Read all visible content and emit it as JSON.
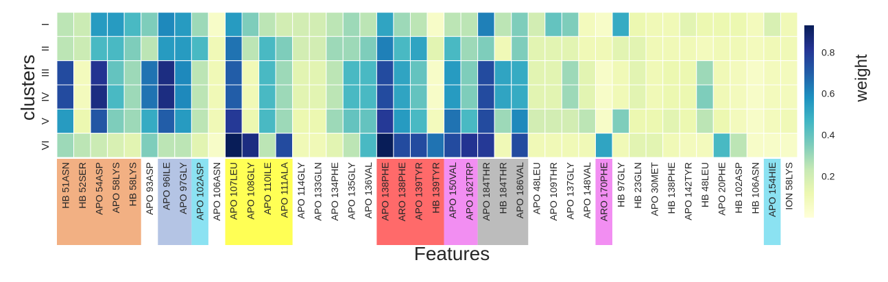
{
  "chart_data": {
    "type": "heatmap",
    "xlabel": "Features",
    "ylabel": "clusters",
    "colorbar_label": "weight",
    "colorbar_ticks": [
      "0.2",
      "0.4",
      "0.6",
      "0.8"
    ],
    "colorbar_tick_values": [
      0.2,
      0.4,
      0.6,
      0.8
    ],
    "value_range": [
      0.0,
      0.93
    ],
    "colormap": "YlGnBu",
    "grid": true,
    "rows": [
      "I",
      "II",
      "III",
      "IV",
      "V",
      "VI"
    ],
    "columns": [
      "HB 51ASN",
      "HB 52SER",
      "APO 54ASP",
      "APO 58LYS",
      "HB 58LYS",
      "APO 93ASP",
      "APO 96ILE",
      "APO 97GLY",
      "APO 102ASP",
      "APO 106ASN",
      "APO 107LEU",
      "APO 108GLY",
      "APO 110ILE",
      "APO 111ALA",
      "APO 114GLY",
      "APO 133GLN",
      "APO 134PHE",
      "APO 135GLY",
      "APO 136VAL",
      "APO 138PHE",
      "ARO 138PHE",
      "APO 139TYR",
      "HB 139TYR",
      "APO 150VAL",
      "APO 162TRP",
      "APO 184THR",
      "HB 184THR",
      "APO 186VAL",
      "APO 48LEU",
      "APO 109THR",
      "APO 137GLY",
      "APO 148VAL",
      "ARO 170PHE",
      "HB 97GLY",
      "HB 23GLN",
      "APO 30MET",
      "HB 138PHE",
      "APO 142TYR",
      "HB 48LEU",
      "APO 20PHE",
      "HB 102ASP",
      "HB 106ASN",
      "APO 154HIE",
      "ION 58LYS"
    ],
    "label_groups": [
      {
        "color": "#f2b083",
        "columns": [
          0,
          1,
          2,
          3,
          4
        ]
      },
      {
        "color": "#b4c4e4",
        "columns": [
          6,
          7
        ]
      },
      {
        "color": "#8be2f2",
        "columns": [
          8
        ]
      },
      {
        "color": "#ffff55",
        "columns": [
          10,
          11,
          12,
          13
        ]
      },
      {
        "color": "#ff6a6a",
        "columns": [
          19,
          20,
          21,
          22
        ]
      },
      {
        "color": "#f28ef2",
        "columns": [
          23,
          24
        ]
      },
      {
        "color": "#bcbcbc",
        "columns": [
          25,
          26,
          27
        ]
      },
      {
        "color": "#f28ef2",
        "columns": [
          32
        ]
      },
      {
        "color": "#8be2f2",
        "columns": [
          42
        ]
      }
    ],
    "values": [
      [
        0.25,
        0.22,
        0.55,
        0.55,
        0.45,
        0.35,
        0.6,
        0.55,
        0.3,
        0.05,
        0.55,
        0.35,
        0.25,
        0.2,
        0.2,
        0.2,
        0.25,
        0.3,
        0.25,
        0.52,
        0.3,
        0.25,
        0.05,
        0.25,
        0.25,
        0.62,
        0.25,
        0.35,
        0.2,
        0.4,
        0.35,
        0.08,
        0.05,
        0.5,
        0.12,
        0.1,
        0.1,
        0.15,
        0.12,
        0.12,
        0.12,
        0.08,
        0.18,
        0.1
      ],
      [
        0.25,
        0.22,
        0.45,
        0.45,
        0.35,
        0.25,
        0.55,
        0.55,
        0.45,
        0.1,
        0.65,
        0.25,
        0.45,
        0.35,
        0.2,
        0.2,
        0.3,
        0.3,
        0.35,
        0.62,
        0.45,
        0.52,
        0.15,
        0.45,
        0.3,
        0.35,
        0.1,
        0.35,
        0.15,
        0.15,
        0.15,
        0.1,
        0.1,
        0.15,
        0.15,
        0.1,
        0.1,
        0.1,
        0.08,
        0.1,
        0.1,
        0.08,
        0.1,
        0.1
      ],
      [
        0.75,
        0.08,
        0.82,
        0.4,
        0.3,
        0.65,
        0.85,
        0.6,
        0.25,
        0.1,
        0.7,
        0.1,
        0.45,
        0.3,
        0.15,
        0.15,
        0.25,
        0.45,
        0.45,
        0.75,
        0.52,
        0.4,
        0.05,
        0.55,
        0.35,
        0.75,
        0.52,
        0.5,
        0.15,
        0.15,
        0.3,
        0.15,
        0.05,
        0.1,
        0.15,
        0.1,
        0.12,
        0.12,
        0.3,
        0.1,
        0.08,
        0.05,
        0.08,
        0.08
      ],
      [
        0.75,
        0.08,
        0.85,
        0.45,
        0.3,
        0.65,
        0.85,
        0.6,
        0.25,
        0.1,
        0.7,
        0.1,
        0.45,
        0.3,
        0.15,
        0.15,
        0.25,
        0.45,
        0.45,
        0.75,
        0.52,
        0.4,
        0.05,
        0.55,
        0.35,
        0.75,
        0.52,
        0.5,
        0.15,
        0.15,
        0.3,
        0.15,
        0.05,
        0.1,
        0.15,
        0.1,
        0.12,
        0.12,
        0.35,
        0.1,
        0.08,
        0.05,
        0.08,
        0.08
      ],
      [
        0.55,
        0.12,
        0.72,
        0.35,
        0.3,
        0.5,
        0.7,
        0.55,
        0.25,
        0.1,
        0.8,
        0.12,
        0.45,
        0.3,
        0.12,
        0.12,
        0.3,
        0.4,
        0.4,
        0.8,
        0.55,
        0.45,
        0.08,
        0.65,
        0.45,
        0.75,
        0.3,
        0.6,
        0.2,
        0.2,
        0.2,
        0.25,
        0.05,
        0.35,
        0.12,
        0.12,
        0.15,
        0.12,
        0.25,
        0.12,
        0.08,
        0.05,
        0.08,
        0.1
      ],
      [
        0.3,
        0.25,
        0.22,
        0.18,
        0.15,
        0.35,
        0.25,
        0.25,
        0.15,
        0.05,
        0.93,
        0.85,
        0.25,
        0.75,
        0.1,
        0.1,
        0.15,
        0.25,
        0.45,
        0.93,
        0.75,
        0.75,
        0.65,
        0.75,
        0.82,
        0.8,
        0.1,
        0.75,
        0.1,
        0.1,
        0.1,
        0.1,
        0.52,
        0.1,
        0.15,
        0.15,
        0.1,
        0.08,
        0.08,
        0.45,
        0.25,
        0.05,
        0.05,
        0.05
      ]
    ]
  }
}
